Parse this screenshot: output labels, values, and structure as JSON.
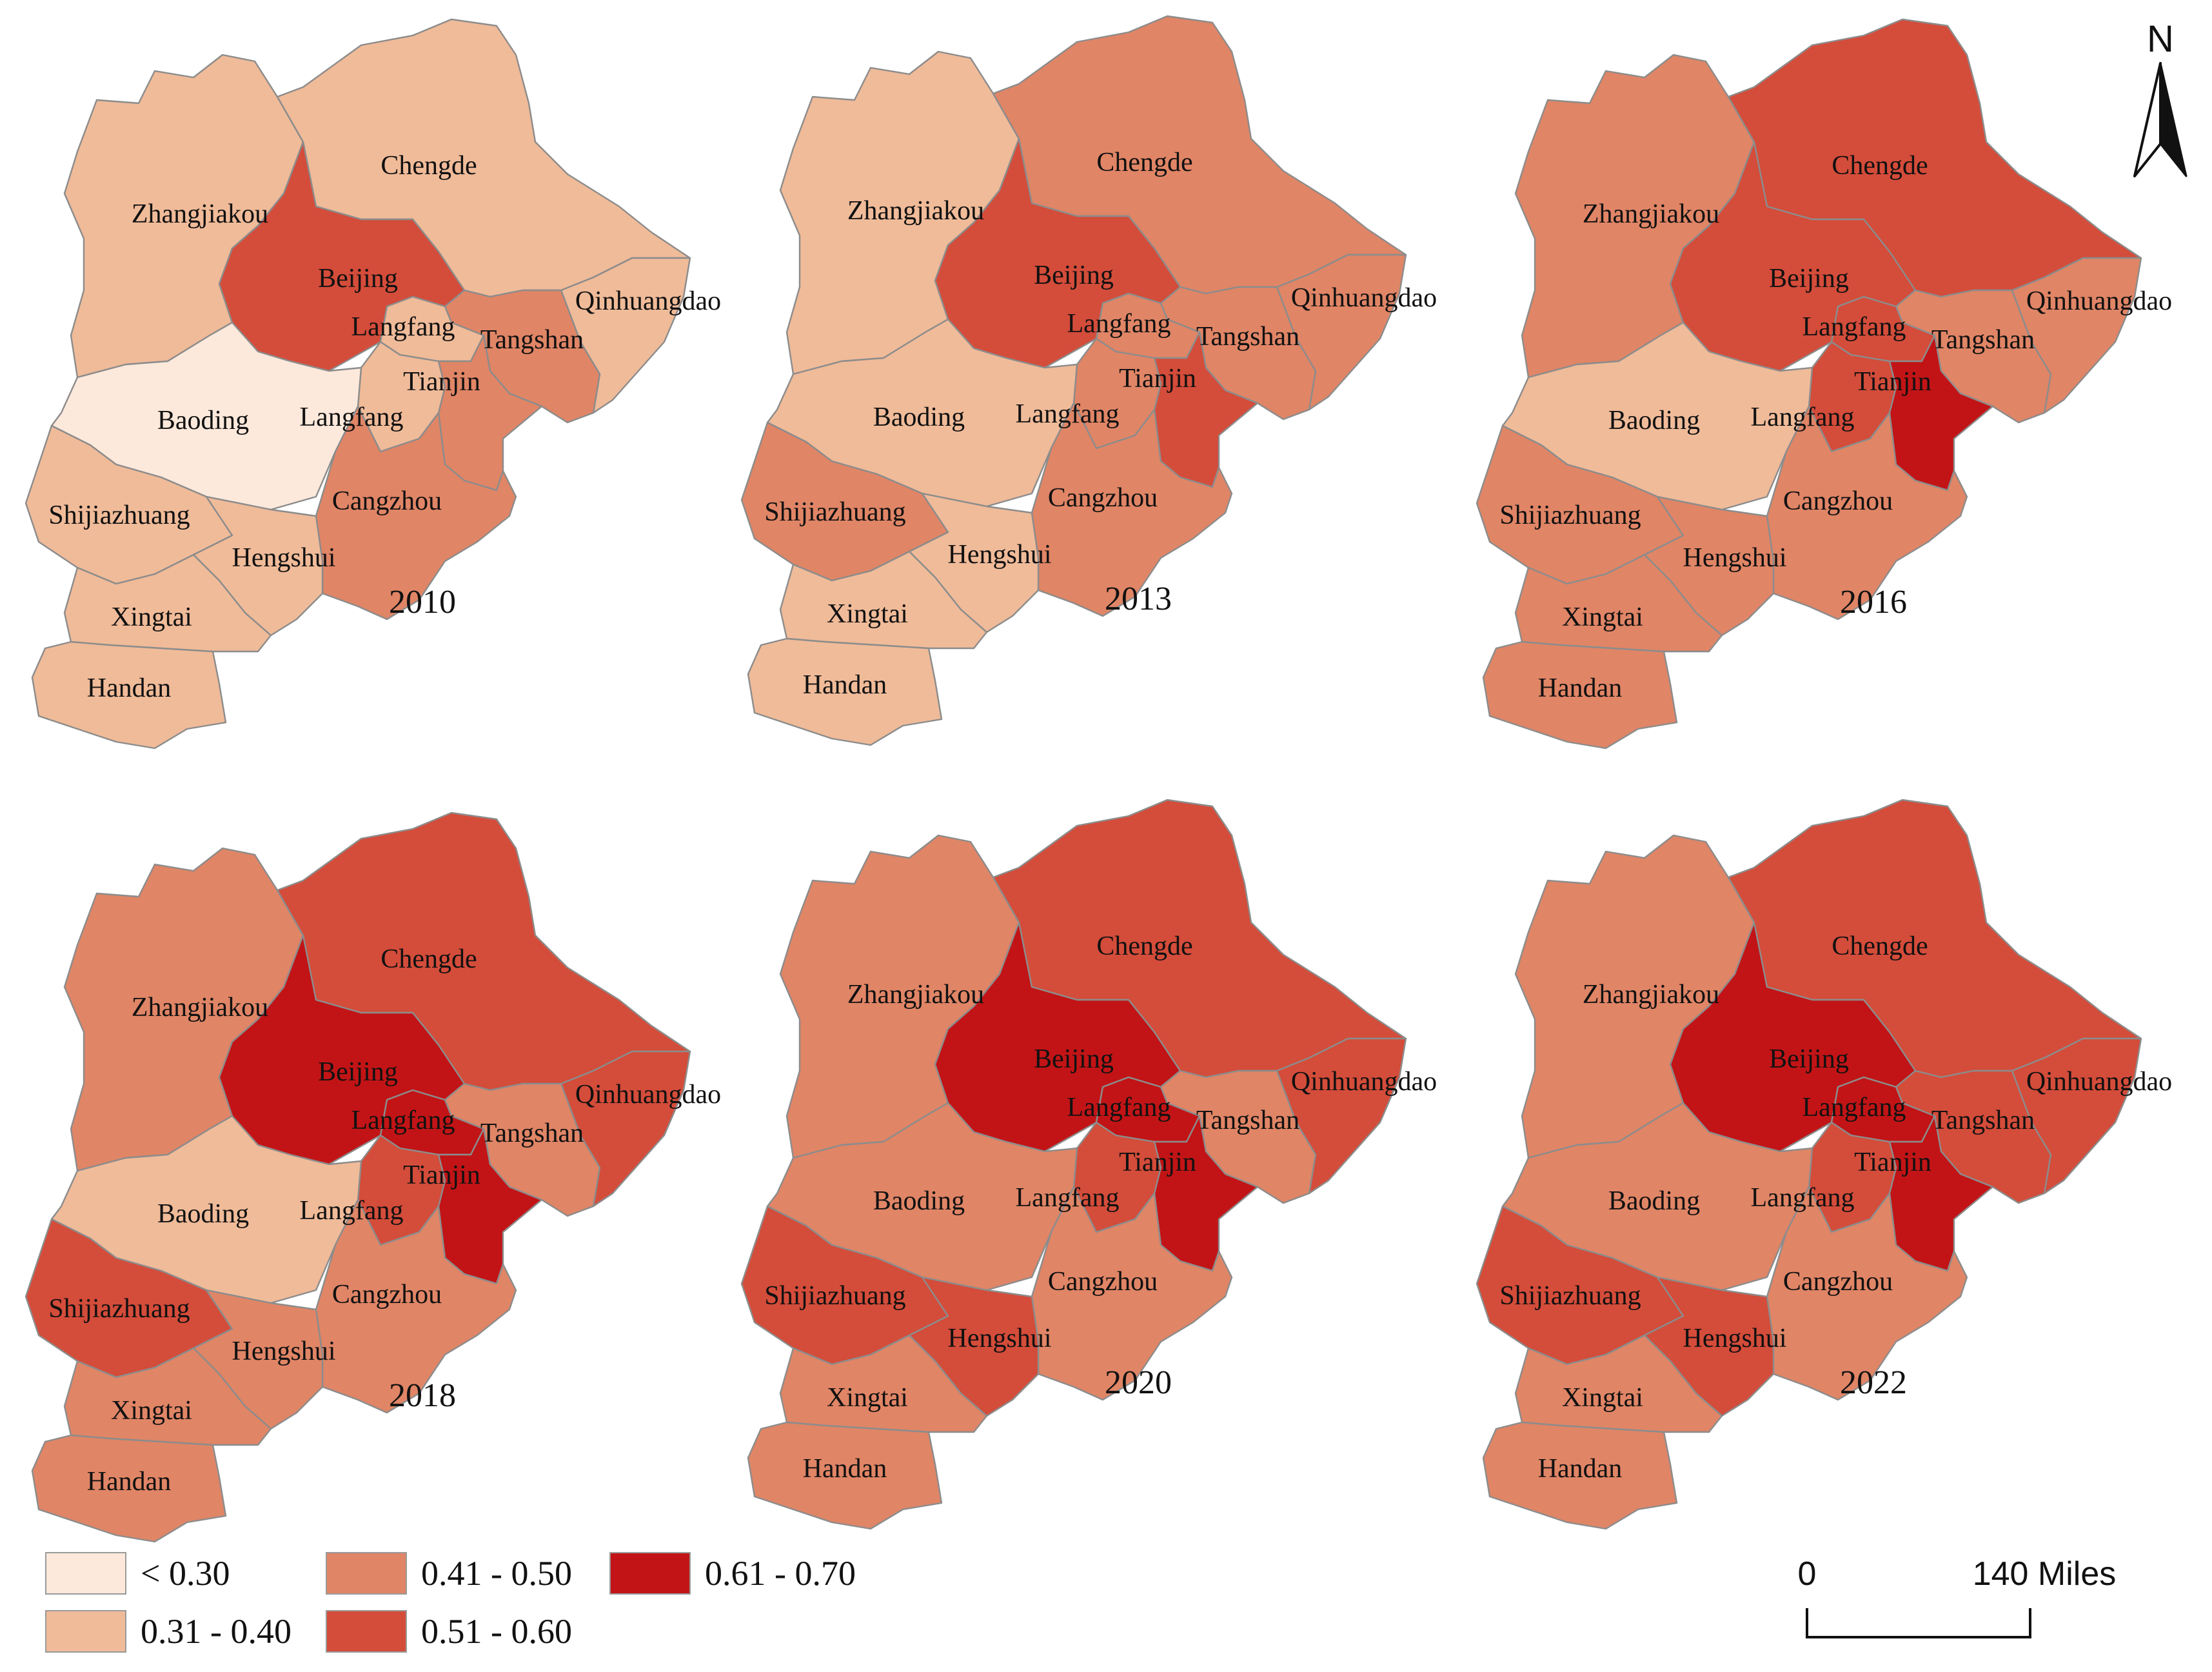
{
  "classes": [
    {
      "id": "c1",
      "label": "< 0.30",
      "color": "#fde9db"
    },
    {
      "id": "c2",
      "label": "0.31 - 0.40",
      "color": "#f0bb99"
    },
    {
      "id": "c3",
      "label": "0.41 - 0.50",
      "color": "#e08566"
    },
    {
      "id": "c4",
      "label": "0.51 - 0.60",
      "color": "#d44c3a"
    },
    {
      "id": "c5",
      "label": "0.61 - 0.70",
      "color": "#c21416"
    }
  ],
  "north_label": "N",
  "scale_bar": {
    "start_label": "0",
    "end_label": "140 Miles"
  },
  "panels": [
    {
      "year": "2010",
      "labels": {
        "Chengde": "Chengde",
        "Zhangjiakou": "Zhangjiakou",
        "Beijing": "Beijing",
        "Qinhuangdao": "Qinhuangdao",
        "Tangshan": "Tangshan",
        "LangfangN": "Langfang",
        "Tianjin": "Tianjin",
        "LangfangS": "Langfang",
        "Baoding": "Baoding",
        "Cangzhou": "Cangzhou",
        "Shijiazhuang": "Shijiazhuang",
        "Hengshui": "Hengshui",
        "Xingtai": "Xingtai",
        "Handan": "Handan"
      },
      "regions": {
        "Chengde": "c2",
        "Zhangjiakou": "c2",
        "Beijing": "c4",
        "Qinhuangdao": "c2",
        "Tangshan": "c3",
        "LangfangN": "c2",
        "Tianjin": "c3",
        "LangfangS": "c2",
        "Baoding": "c1",
        "Cangzhou": "c3",
        "Shijiazhuang": "c2",
        "Hengshui": "c2",
        "Xingtai": "c2",
        "Handan": "c2"
      }
    },
    {
      "year": "2013",
      "labels": {
        "Chengde": "Chengde",
        "Zhangjiakou": "Zhangjiakou",
        "Beijing": "Beijing",
        "Qinhuangdao": "Qinhuangdao",
        "Tangshan": "Tangshan",
        "LangfangN": "Langfang",
        "Tianjin": "Tianjin",
        "LangfangS": "Langfang",
        "Baoding": "Baoding",
        "Cangzhou": "Cangzhou",
        "Shijiazhuang": "Shijiazhuang",
        "Hengshui": "Hengshui",
        "Xingtai": "Xingtai",
        "Handan": "Handan"
      },
      "regions": {
        "Chengde": "c3",
        "Zhangjiakou": "c2",
        "Beijing": "c4",
        "Qinhuangdao": "c3",
        "Tangshan": "c3",
        "LangfangN": "c3",
        "Tianjin": "c4",
        "LangfangS": "c3",
        "Baoding": "c2",
        "Cangzhou": "c3",
        "Shijiazhuang": "c3",
        "Hengshui": "c2",
        "Xingtai": "c2",
        "Handan": "c2"
      }
    },
    {
      "year": "2016",
      "labels": {
        "Chengde": "Chengde",
        "Zhangjiakou": "Zhangjiakou",
        "Beijing": "Beijing",
        "Qinhuangdao": "Qinhuangdao",
        "Tangshan": "Tangshan",
        "LangfangN": "Langfang",
        "Tianjin": "Tianjin",
        "LangfangS": "Langfang",
        "Baoding": "Baoding",
        "Cangzhou": "Cangzhou",
        "Shijiazhuang": "Shijiazhuang",
        "Hengshui": "Hengshui",
        "Xingtai": "Xingtai",
        "Handan": "Handan"
      },
      "regions": {
        "Chengde": "c4",
        "Zhangjiakou": "c3",
        "Beijing": "c4",
        "Qinhuangdao": "c3",
        "Tangshan": "c3",
        "LangfangN": "c4",
        "Tianjin": "c5",
        "LangfangS": "c4",
        "Baoding": "c2",
        "Cangzhou": "c3",
        "Shijiazhuang": "c3",
        "Hengshui": "c3",
        "Xingtai": "c3",
        "Handan": "c3"
      }
    },
    {
      "year": "2018",
      "labels": {
        "Chengde": "Chengde",
        "Zhangjiakou": "Zhangjiakou",
        "Beijing": "Beijing",
        "Qinhuangdao": "Qinhuangdao",
        "Tangshan": "Tangshan",
        "LangfangN": "Langfang",
        "Tianjin": "Tianjin",
        "LangfangS": "Langfang",
        "Baoding": "Baoding",
        "Cangzhou": "Cangzhou",
        "Shijiazhuang": "Shijiazhuang",
        "Hengshui": "Hengshui",
        "Xingtai": "Xingtai",
        "Handan": "Handan"
      },
      "regions": {
        "Chengde": "c4",
        "Zhangjiakou": "c3",
        "Beijing": "c5",
        "Qinhuangdao": "c4",
        "Tangshan": "c3",
        "LangfangN": "c5",
        "Tianjin": "c5",
        "LangfangS": "c4",
        "Baoding": "c2",
        "Cangzhou": "c3",
        "Shijiazhuang": "c4",
        "Hengshui": "c3",
        "Xingtai": "c3",
        "Handan": "c3"
      }
    },
    {
      "year": "2020",
      "labels": {
        "Chengde": "Chengde",
        "Zhangjiakou": "Zhangjiakou",
        "Beijing": "Beijing",
        "Qinhuangdao": "Qinhuangdao",
        "Tangshan": "Tangshan",
        "LangfangN": "Langfang",
        "Tianjin": "Tianjin",
        "LangfangS": "Langfang",
        "Baoding": "Baoding",
        "Cangzhou": "Cangzhou",
        "Shijiazhuang": "Shijiazhuang",
        "Hengshui": "Hengshui",
        "Xingtai": "Xingtai",
        "Handan": "Handan"
      },
      "regions": {
        "Chengde": "c4",
        "Zhangjiakou": "c3",
        "Beijing": "c5",
        "Qinhuangdao": "c4",
        "Tangshan": "c3",
        "LangfangN": "c5",
        "Tianjin": "c5",
        "LangfangS": "c4",
        "Baoding": "c3",
        "Cangzhou": "c3",
        "Shijiazhuang": "c4",
        "Hengshui": "c4",
        "Xingtai": "c3",
        "Handan": "c3"
      }
    },
    {
      "year": "2022",
      "labels": {
        "Chengde": "Chengde",
        "Zhangjiakou": "Zhangjiakou",
        "Beijing": "Beijing",
        "Qinhuangdao": "Qinhuangdao",
        "Tangshan": "Tangshan",
        "LangfangN": "Langfang",
        "Tianjin": "Tianjin",
        "LangfangS": "Langfang",
        "Baoding": "Baoding",
        "Cangzhou": "Cangzhou",
        "Shijiazhuang": "Shijiazhuang",
        "Hengshui": "Hengshui",
        "Xingtai": "Xingtai",
        "Handan": "Handan"
      },
      "regions": {
        "Chengde": "c4",
        "Zhangjiakou": "c3",
        "Beijing": "c5",
        "Qinhuangdao": "c4",
        "Tangshan": "c4",
        "LangfangN": "c5",
        "Tianjin": "c5",
        "LangfangS": "c4",
        "Baoding": "c3",
        "Cangzhou": "c3",
        "Shijiazhuang": "c4",
        "Hengshui": "c4",
        "Xingtai": "c3",
        "Handan": "c3"
      }
    }
  ]
}
